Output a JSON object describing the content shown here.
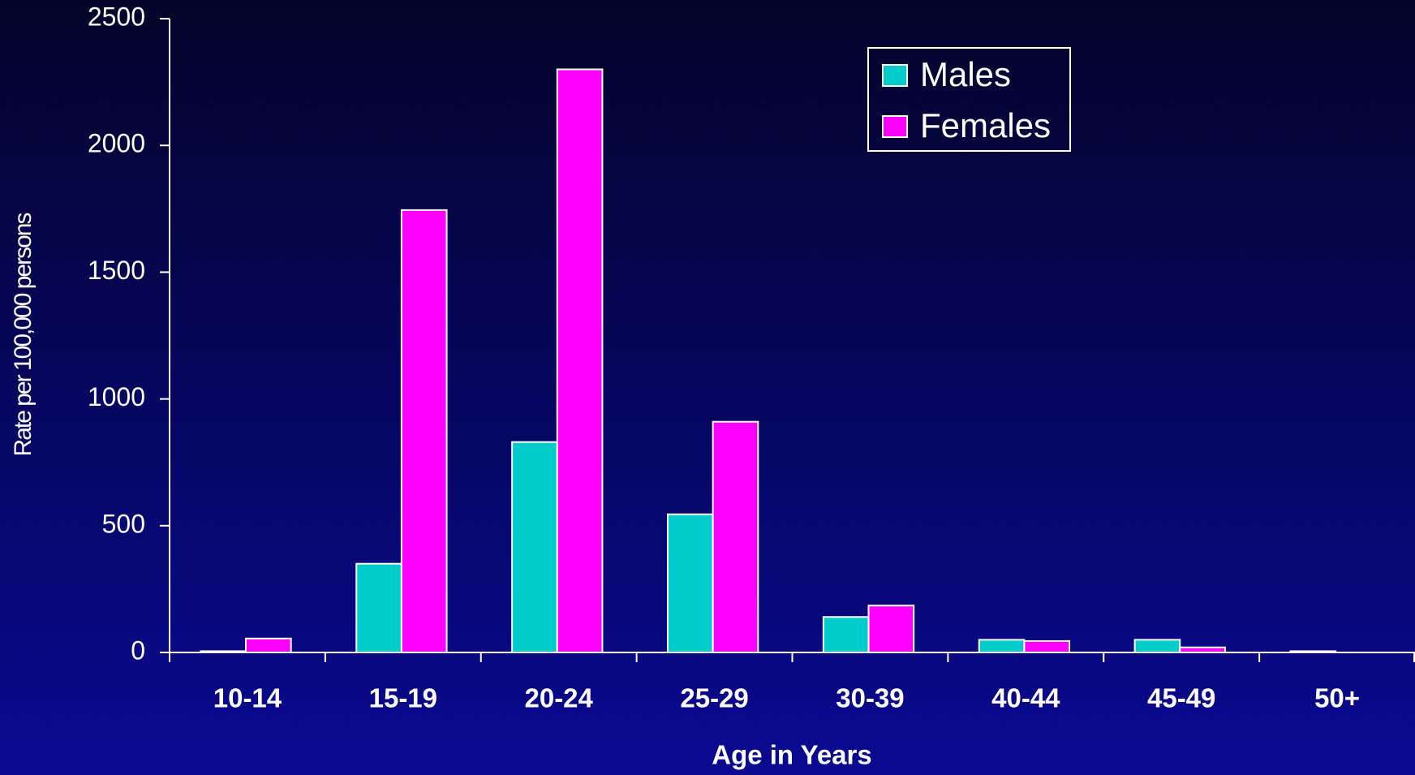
{
  "chart_data": {
    "type": "bar",
    "x_label": "Age in Years",
    "y_label": "Rate per 100,000 persons",
    "categories": [
      "10-14",
      "15-19",
      "20-24",
      "25-29",
      "30-39",
      "40-44",
      "45-49",
      "50+"
    ],
    "series": [
      {
        "name": "Males",
        "color": "#00cccc",
        "values": [
          5,
          350,
          830,
          545,
          140,
          50,
          50,
          5
        ]
      },
      {
        "name": "Females",
        "color": "#ff00ff",
        "values": [
          55,
          1745,
          2300,
          910,
          185,
          45,
          20,
          0
        ]
      }
    ],
    "ylim": [
      0,
      2500
    ],
    "yticks": [
      0,
      500,
      1000,
      1500,
      2000,
      2500
    ]
  }
}
